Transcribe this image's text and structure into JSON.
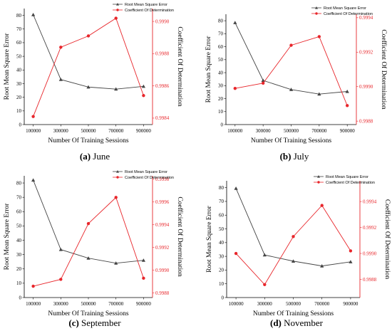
{
  "chart_data": [
    {
      "type": "line",
      "caption_letter": "(a)",
      "caption_text": "June",
      "xlabel": "Number Of Training Sessions",
      "ylabel_left": "Root Mean Square Error",
      "ylabel_right": "Coefficient Of Determination",
      "categories": [
        "100000",
        "300000",
        "500000",
        "700000",
        "900000"
      ],
      "left_ylim": [
        0,
        85
      ],
      "left_ticks": [
        "0",
        "10",
        "20",
        "30",
        "40",
        "50",
        "60",
        "70",
        "80"
      ],
      "right_ylim": [
        0.99836,
        0.99908
      ],
      "right_ticks": [
        "0.9984",
        "0.9986",
        "0.9988",
        "0.9990"
      ],
      "legend_position": "top-right",
      "series": [
        {
          "name": "Root Mean Square Error",
          "axis": "left",
          "color": "#444444",
          "marker": "triangle",
          "values": [
            80.5,
            33,
            27.5,
            26,
            28
          ]
        },
        {
          "name": "Coefficient Of Determination",
          "axis": "right",
          "color": "#e8262b",
          "marker": "circle",
          "values": [
            0.99841,
            0.99884,
            0.99891,
            0.99902,
            0.99854
          ]
        }
      ]
    },
    {
      "type": "line",
      "caption_letter": "(b)",
      "caption_text": "July",
      "xlabel": "Number Of Training Sessions",
      "ylabel_left": "Root Mean Square Error",
      "ylabel_right": "Coefficient Of Determination",
      "categories": [
        "100000",
        "300000",
        "500000",
        "700000",
        "900000"
      ],
      "left_ylim": [
        0,
        85
      ],
      "left_ticks": [
        "0",
        "10",
        "20",
        "30",
        "40",
        "50",
        "60",
        "70",
        "80"
      ],
      "right_ylim": [
        0.99878,
        0.99942
      ],
      "right_ticks": [
        "0.9988",
        "0.9990",
        "0.9992",
        "0.9994"
      ],
      "legend_position": "top-right",
      "series": [
        {
          "name": "Root Mean Square Error",
          "axis": "left",
          "color": "#444444",
          "marker": "triangle",
          "values": [
            78.5,
            34,
            27,
            23.5,
            25.5
          ]
        },
        {
          "name": "Coefficient Of Determination",
          "axis": "right",
          "color": "#e8262b",
          "marker": "circle",
          "values": [
            0.99899,
            0.99902,
            0.99924,
            0.99929,
            0.99889
          ]
        }
      ]
    },
    {
      "type": "line",
      "caption_letter": "(c)",
      "caption_text": "September",
      "xlabel": "Number Of Training Sessions",
      "ylabel_left": "Root Mean Square Error",
      "ylabel_right": "Coefficient Of Determination",
      "categories": [
        "100000",
        "300000",
        "500000",
        "700000",
        "900000"
      ],
      "left_ylim": [
        0,
        85
      ],
      "left_ticks": [
        "0",
        "10",
        "20",
        "30",
        "40",
        "50",
        "60",
        "70",
        "80"
      ],
      "right_ylim": [
        0.99876,
        0.99983
      ],
      "right_ticks": [
        "0.9988",
        "0.9990",
        "0.9992",
        "0.9994",
        "0.9996",
        "0.9998"
      ],
      "legend_position": "top-right",
      "series": [
        {
          "name": "Root Mean Square Error",
          "axis": "left",
          "color": "#444444",
          "marker": "triangle",
          "values": [
            82,
            33.5,
            27.5,
            24,
            26
          ]
        },
        {
          "name": "Coefficient Of Determination",
          "axis": "right",
          "color": "#e8262b",
          "marker": "circle",
          "values": [
            0.99886,
            0.99892,
            0.99941,
            0.99964,
            0.99893
          ]
        }
      ]
    },
    {
      "type": "line",
      "caption_letter": "(d)",
      "caption_text": "November",
      "xlabel": "Number Of Training Sessions",
      "ylabel_left": "Root Mean Square Error",
      "ylabel_right": "Coefficient Of Determination",
      "categories": [
        "100000",
        "300000",
        "500000",
        "700000",
        "900000"
      ],
      "left_ylim": [
        0,
        85
      ],
      "left_ticks": [
        "0",
        "10",
        "20",
        "30",
        "40",
        "50",
        "60",
        "70",
        "80"
      ],
      "right_ylim": [
        0.99866,
        0.99956
      ],
      "right_ticks": [
        "0.9988",
        "0.9990",
        "0.9992",
        "0.9994"
      ],
      "legend_position": "top-right",
      "series": [
        {
          "name": "Root Mean Square Error",
          "axis": "left",
          "color": "#444444",
          "marker": "triangle",
          "values": [
            79.5,
            31,
            26.5,
            23,
            26
          ]
        },
        {
          "name": "Coefficient Of Determination",
          "axis": "right",
          "color": "#e8262b",
          "marker": "circle",
          "values": [
            0.999,
            0.99876,
            0.99913,
            0.99937,
            0.99902
          ]
        }
      ]
    }
  ]
}
